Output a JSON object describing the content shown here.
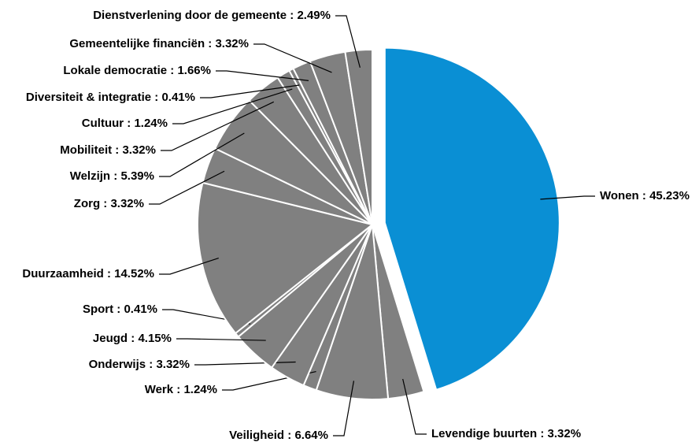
{
  "chart_data": {
    "type": "pie",
    "categories": [
      "Wonen",
      "Levendige buurten",
      "Veiligheid",
      "Werk",
      "Onderwijs",
      "Jeugd",
      "Sport",
      "Duurzaamheid",
      "Zorg",
      "Welzijn",
      "Mobiliteit",
      "Cultuur",
      "Diversiteit & integratie",
      "Lokale democratie",
      "Gemeentelijke financiën",
      "Dienstverlening door de gemeente"
    ],
    "values": [
      45.23,
      3.32,
      6.64,
      1.24,
      3.32,
      4.15,
      0.41,
      14.52,
      3.32,
      5.39,
      3.32,
      1.24,
      0.41,
      1.66,
      3.32,
      2.49
    ],
    "value_labels": [
      "45.23%",
      "3.32%",
      "6.64%",
      "1.24%",
      "3.32%",
      "4.15%",
      "0.41%",
      "14.52%",
      "3.32%",
      "5.39%",
      "3.32%",
      "1.24%",
      "0.41%",
      "1.66%",
      "3.32%",
      "2.49%"
    ],
    "separator": " : ",
    "colors": [
      "#0a8fd4",
      "#808080",
      "#808080",
      "#808080",
      "#808080",
      "#808080",
      "#808080",
      "#808080",
      "#808080",
      "#808080",
      "#808080",
      "#808080",
      "#808080",
      "#808080",
      "#808080",
      "#808080"
    ]
  }
}
